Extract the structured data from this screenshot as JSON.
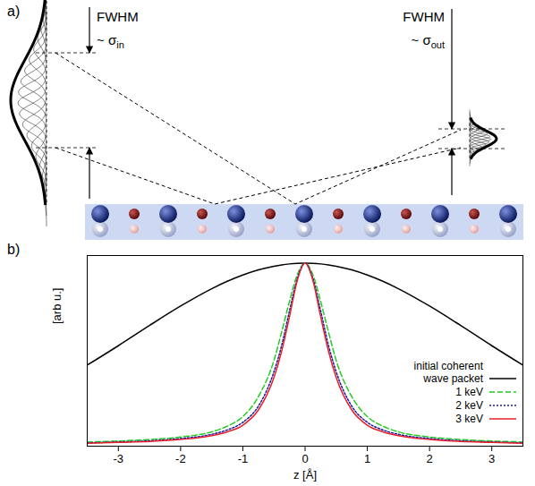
{
  "diagram": {
    "label": "a)",
    "incoming": {
      "heading": "FWHM",
      "width_text": "~ σ",
      "width_sub": "in"
    },
    "outgoing": {
      "heading": "FWHM",
      "width_text": "~ σ",
      "width_sub": "out"
    }
  },
  "chart_data": {
    "label": "b)",
    "type": "line",
    "x_label": "z [Å]",
    "y_label": "[arb u.]",
    "x": [
      -3.5,
      -3,
      -2.5,
      -2,
      -1.5,
      -1.25,
      -1,
      -0.75,
      -0.5,
      -0.375,
      -0.25,
      -0.125,
      0,
      0.125,
      0.25,
      0.375,
      0.5,
      0.75,
      1,
      1.25,
      1.5,
      2,
      2.5,
      3,
      3.5
    ],
    "series": [
      {
        "name": "initial coherent wave packet",
        "color": "#000000",
        "line_style": "solid",
        "values": [
          0.425,
          0.527,
          0.633,
          0.735,
          0.826,
          0.865,
          0.898,
          0.925,
          0.944,
          0.951,
          0.956,
          0.959,
          0.96,
          0.959,
          0.956,
          0.951,
          0.944,
          0.925,
          0.898,
          0.865,
          0.826,
          0.735,
          0.633,
          0.527,
          0.425
        ]
      },
      {
        "name": "1 keV",
        "color": "#22cc22",
        "line_style": "dashed",
        "values": [
          0.022,
          0.027,
          0.035,
          0.048,
          0.075,
          0.105,
          0.155,
          0.26,
          0.45,
          0.6,
          0.76,
          0.9,
          0.96,
          0.9,
          0.76,
          0.6,
          0.45,
          0.26,
          0.155,
          0.105,
          0.075,
          0.048,
          0.035,
          0.027,
          0.022
        ]
      },
      {
        "name": "2 keV",
        "color": "#1a1aa0",
        "line_style": "dotted",
        "values": [
          0.017,
          0.022,
          0.028,
          0.04,
          0.062,
          0.085,
          0.125,
          0.21,
          0.39,
          0.53,
          0.71,
          0.88,
          0.96,
          0.88,
          0.71,
          0.53,
          0.39,
          0.21,
          0.125,
          0.085,
          0.062,
          0.04,
          0.028,
          0.022,
          0.017
        ]
      },
      {
        "name": "3 keV",
        "color": "#e8202a",
        "line_style": "solid",
        "values": [
          0.015,
          0.02,
          0.025,
          0.035,
          0.055,
          0.075,
          0.11,
          0.19,
          0.36,
          0.5,
          0.68,
          0.87,
          0.96,
          0.87,
          0.68,
          0.5,
          0.36,
          0.19,
          0.11,
          0.075,
          0.055,
          0.035,
          0.025,
          0.02,
          0.015
        ]
      }
    ],
    "xlim": [
      -3.5,
      3.5
    ],
    "xticks": [
      -3,
      -2,
      -1,
      0,
      1,
      2,
      3
    ],
    "ylim": [
      0,
      1
    ],
    "yticks": [],
    "tick_labels": "x",
    "legend": "right"
  }
}
